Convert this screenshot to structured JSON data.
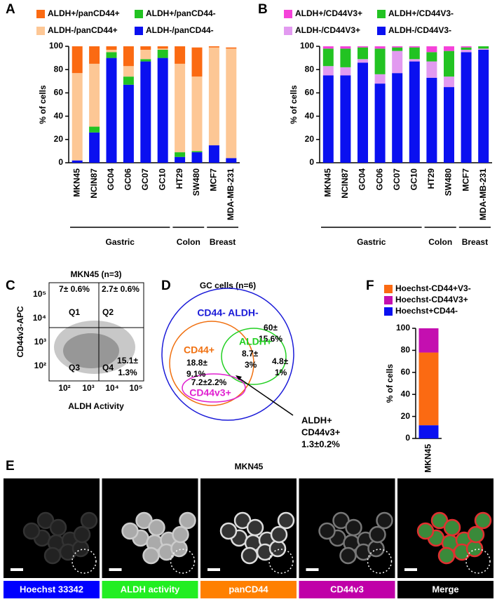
{
  "panel_letters": [
    "A",
    "B",
    "C",
    "D",
    "E",
    "F"
  ],
  "chart_data": [
    {
      "type": "stacked-bar",
      "ylabel": "% of cells",
      "categories": [
        "MKN45",
        "NCIN87",
        "GC04",
        "GC06",
        "GC07",
        "GC10",
        "HT29",
        "SW480",
        "MCF7",
        "MDA-MB-231"
      ],
      "series": [
        {
          "name": "ALDH-/panCD44-",
          "color": "#0a10f0",
          "values": [
            2,
            26,
            90,
            67,
            87,
            90,
            5,
            9,
            15,
            4
          ]
        },
        {
          "name": "ALDH+/panCD44-",
          "color": "#22c322",
          "values": [
            0,
            5,
            5,
            7,
            2,
            7,
            4,
            1,
            0,
            0
          ]
        },
        {
          "name": "ALDH-/panCD44+",
          "color": "#fdc795",
          "values": [
            75,
            54,
            2,
            9,
            8,
            1,
            76,
            64,
            84,
            94
          ]
        },
        {
          "name": "ALDH+/panCD44+",
          "color": "#fb6a12",
          "values": [
            23,
            15,
            3,
            17,
            3,
            2,
            15,
            25,
            1,
            1
          ]
        }
      ],
      "ylim": [
        0,
        100
      ],
      "yticks": [
        0,
        20,
        40,
        60,
        80,
        100
      ],
      "groups": [
        {
          "label": "Gastric",
          "start": 0,
          "end": 5
        },
        {
          "label": "Colon",
          "start": 6,
          "end": 7
        },
        {
          "label": "Breast",
          "start": 8,
          "end": 9
        }
      ]
    },
    {
      "type": "stacked-bar",
      "ylabel": "% of cells",
      "categories": [
        "MKN45",
        "NCIN87",
        "GC04",
        "GC06",
        "GC07",
        "GC10",
        "HT29",
        "SW480",
        "MCF7",
        "MDA-MB-231"
      ],
      "series": [
        {
          "name": "ALDH-/CD44V3-",
          "color": "#0a10f0",
          "values": [
            75,
            75,
            86,
            68,
            77,
            87,
            73,
            65,
            95,
            97
          ]
        },
        {
          "name": "ALDH-/CD44V3+",
          "color": "#e29af0",
          "values": [
            8,
            7,
            3,
            8,
            19,
            2,
            14,
            9,
            2,
            1
          ]
        },
        {
          "name": "ALDH+/CD44V3-",
          "color": "#22c322",
          "values": [
            15,
            16,
            10,
            22,
            3,
            10,
            8,
            22,
            2,
            2
          ]
        },
        {
          "name": "ALDH+/CD44V3+",
          "color": "#f542d9",
          "values": [
            2,
            2,
            1,
            2,
            1,
            1,
            5,
            4,
            1,
            0
          ]
        }
      ],
      "ylim": [
        0,
        100
      ],
      "yticks": [
        0,
        20,
        40,
        60,
        80,
        100
      ],
      "groups": [
        {
          "label": "Gastric",
          "start": 0,
          "end": 5
        },
        {
          "label": "Colon",
          "start": 6,
          "end": 7
        },
        {
          "label": "Breast",
          "start": 8,
          "end": 9
        }
      ]
    },
    {
      "type": "stacked-bar",
      "ylabel": "% of cells",
      "categories": [
        "MKN45"
      ],
      "series": [
        {
          "name": "Hoechst+CD44-",
          "color": "#0a10f0",
          "values": [
            12
          ]
        },
        {
          "name": "Hoechst-CD44+V3-",
          "color": "#fb6a12",
          "values": [
            66
          ]
        },
        {
          "name": "Hoechst-CD44V3+",
          "color": "#c40fb0",
          "values": [
            22
          ]
        }
      ],
      "ylim": [
        0,
        100
      ],
      "yticks": [
        0,
        20,
        40,
        60,
        80,
        100
      ]
    }
  ],
  "flow": {
    "title": "MKN45 (n=3)",
    "xlabel": "ALDH Activity",
    "ylabel": "CD44v3-APC",
    "xtick_labels": [
      "10²",
      "10³",
      "10⁴",
      "10⁵"
    ],
    "ytick_labels": [
      "10²",
      "10³",
      "10⁴",
      "10⁵"
    ],
    "quadrants": [
      "Q1",
      "Q2",
      "Q3",
      "Q4"
    ],
    "q1_pct": "7± 0.6%",
    "q2_pct": "2.7± 0.6%",
    "q4_pct": [
      "15.1±",
      "1.3%"
    ]
  },
  "venn": {
    "title": "GC cells (n=6)",
    "outer": "CD44- ALDH-",
    "outer_pct": [
      "60±",
      "15.6%"
    ],
    "cd44": "CD44+",
    "cd44_pct": [
      "18.8±",
      "9.1%"
    ],
    "aldh": "ALDH+",
    "aldh_pct": [
      "8.7±",
      "3%"
    ],
    "aldh_only_pct": [
      "4.8±",
      "1%"
    ],
    "v3_pct": "7.2±2.2%",
    "v3": "CD44v3+",
    "callout": [
      "ALDH+",
      "CD44v3+",
      "1.3±0.2%"
    ]
  },
  "microscopy": {
    "title": "MKN45",
    "channels": [
      "Hoechst 33342",
      "ALDH activity",
      "panCD44",
      "CD44v3",
      "Merge"
    ]
  }
}
